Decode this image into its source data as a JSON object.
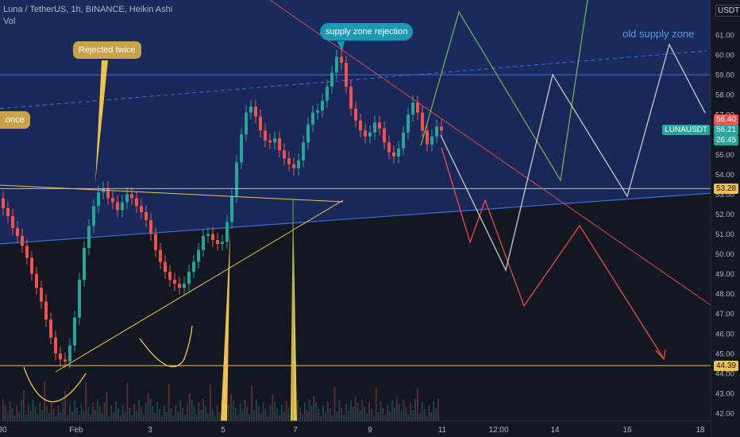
{
  "header": {
    "title": "Luna / TetherUS, 1h, BINANCE, Heikin Ashi",
    "vol_label": "Vol"
  },
  "annotations": {
    "rejected_twice": "Rejected twice",
    "once": "once",
    "supply_zone_rejection": "supply zone rejection",
    "old_supply_zone": "old supply zone"
  },
  "price_axis": {
    "currency": "USDT",
    "ticks": [
      "61.00",
      "60.00",
      "59.00",
      "58.00",
      "57.00",
      "56.00",
      "55.00",
      "54.00",
      "53.00",
      "52.00",
      "51.00",
      "50.00",
      "49.00",
      "48.00",
      "47.00",
      "46.00",
      "45.00",
      "44.00",
      "43.00",
      "42.00"
    ]
  },
  "price_labels": {
    "last_price": "56.40",
    "symbol": "LUNAUSDT",
    "symbol_price": "56.21",
    "countdown": "26:45",
    "level_high": "53.28",
    "level_low": "44.39"
  },
  "time_axis": {
    "ticks": [
      "30",
      "Feb",
      "3",
      "5",
      "7",
      "9",
      "11",
      "12:00",
      "14",
      "16",
      "18"
    ]
  },
  "colors": {
    "up": "#26a69a",
    "down": "#ef5350",
    "zone": "#1e3a8a",
    "gold": "#f0c24b",
    "trend_red": "#e04848",
    "path_green": "#6aa84f",
    "path_grey": "#c0c0c0"
  },
  "chart_data": {
    "type": "candlestick",
    "symbol": "LUNAUSDT",
    "y_range": [
      41.8,
      62.0
    ],
    "price_ticks": [
      61,
      60,
      59,
      58,
      57,
      56,
      55,
      54,
      53,
      52,
      51,
      50,
      49,
      48,
      47,
      46,
      45,
      44,
      43,
      42
    ],
    "closes": [
      52.3,
      51.9,
      51.3,
      50.9,
      50.4,
      49.8,
      49.0,
      48.3,
      47.6,
      46.7,
      45.8,
      45.0,
      44.7,
      44.6,
      45.4,
      46.8,
      48.7,
      50.3,
      51.4,
      52.4,
      53.1,
      53.3,
      52.8,
      52.6,
      52.2,
      52.6,
      53.0,
      52.8,
      52.4,
      52.1,
      51.7,
      51.0,
      50.2,
      49.6,
      49.1,
      48.7,
      48.5,
      48.3,
      48.5,
      49.1,
      49.6,
      50.2,
      50.9,
      51.0,
      50.7,
      50.5,
      50.6,
      51.6,
      52.9,
      54.6,
      56.0,
      57.1,
      57.4,
      56.9,
      56.2,
      55.7,
      55.6,
      55.8,
      55.2,
      54.8,
      54.5,
      54.3,
      54.7,
      55.6,
      56.5,
      57.1,
      57.2,
      57.7,
      58.4,
      59.1,
      59.9,
      59.6,
      58.4,
      57.3,
      56.7,
      56.2,
      55.9,
      56.1,
      56.6,
      56.3,
      55.6,
      55.1,
      54.9,
      55.3,
      56.1,
      57.0,
      57.6,
      57.1,
      56.2,
      55.5,
      55.9,
      56.4,
      56.2
    ],
    "levels": {
      "resistance": 53.28,
      "support": 44.39,
      "zone_top": 59.0
    },
    "projections": {
      "red": [
        [
          56.2,
          0
        ],
        [
          50.8,
          5
        ],
        [
          52.3,
          3
        ],
        [
          47.4,
          9
        ],
        [
          51.6,
          7
        ],
        [
          45.3,
          11
        ]
      ],
      "green": [
        [
          55.5,
          0
        ],
        [
          57.2,
          2
        ],
        [
          60.8,
          5
        ],
        [
          53.7,
          7
        ],
        [
          62.0,
          9
        ]
      ],
      "grey": [
        [
          56.1,
          0
        ],
        [
          49.2,
          5
        ],
        [
          58.9,
          7
        ],
        [
          53.0,
          9
        ],
        [
          60.4,
          11
        ],
        [
          56.8,
          13
        ]
      ]
    }
  }
}
